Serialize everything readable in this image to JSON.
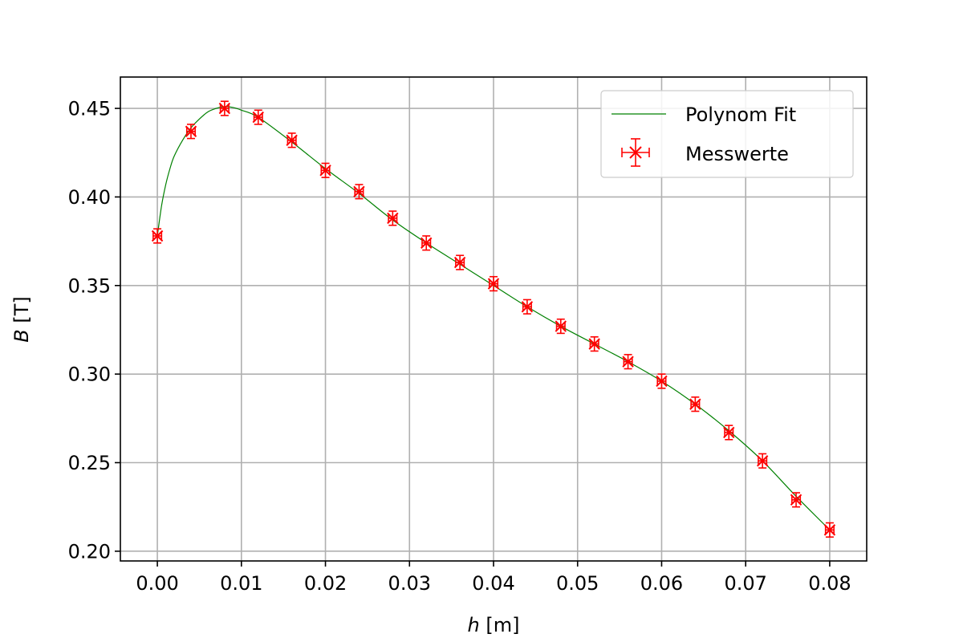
{
  "chart_data": {
    "type": "scatter",
    "title": "",
    "xlabel_var": "h",
    "xlabel_unit": " [m]",
    "ylabel_var": "B",
    "ylabel_unit": " [T]",
    "xlim": [
      -0.0044,
      0.0844
    ],
    "ylim": [
      0.1945,
      0.4677
    ],
    "x_ticks": [
      "0.00",
      "0.01",
      "0.02",
      "0.03",
      "0.04",
      "0.05",
      "0.06",
      "0.07",
      "0.08"
    ],
    "x_tick_values": [
      0.0,
      0.01,
      0.02,
      0.03,
      0.04,
      0.05,
      0.06,
      0.07,
      0.08
    ],
    "y_ticks": [
      "0.20",
      "0.25",
      "0.30",
      "0.35",
      "0.40",
      "0.45"
    ],
    "y_tick_values": [
      0.2,
      0.25,
      0.3,
      0.35,
      0.4,
      0.45
    ],
    "grid": true,
    "legend_position": "top-right",
    "colors": {
      "fit": "#008000",
      "measurements": "#ff0000",
      "grid": "#b0b0b0"
    },
    "series": [
      {
        "name": "Polynom Fit",
        "kind": "line",
        "x": [
          0.0,
          0.0005,
          0.001,
          0.0015,
          0.002,
          0.003,
          0.004,
          0.005,
          0.006,
          0.007,
          0.008,
          0.009,
          0.01,
          0.012,
          0.016,
          0.02,
          0.024,
          0.028,
          0.032,
          0.036,
          0.04,
          0.044,
          0.048,
          0.052,
          0.056,
          0.06,
          0.064,
          0.068,
          0.072,
          0.076,
          0.08
        ],
        "y": [
          0.378,
          0.395,
          0.407,
          0.416,
          0.423,
          0.432,
          0.439,
          0.444,
          0.448,
          0.45,
          0.451,
          0.4505,
          0.449,
          0.445,
          0.431,
          0.416,
          0.402,
          0.387,
          0.374,
          0.362,
          0.35,
          0.338,
          0.327,
          0.317,
          0.307,
          0.296,
          0.283,
          0.268,
          0.251,
          0.231,
          0.212
        ]
      },
      {
        "name": "Messwerte",
        "kind": "errorbar",
        "x": [
          0.0,
          0.004,
          0.008,
          0.012,
          0.016,
          0.02,
          0.024,
          0.028,
          0.032,
          0.036,
          0.04,
          0.044,
          0.048,
          0.052,
          0.056,
          0.06,
          0.064,
          0.068,
          0.072,
          0.076,
          0.08
        ],
        "y": [
          0.378,
          0.437,
          0.45,
          0.445,
          0.432,
          0.415,
          0.403,
          0.388,
          0.374,
          0.363,
          0.351,
          0.338,
          0.327,
          0.317,
          0.307,
          0.296,
          0.283,
          0.267,
          0.251,
          0.229,
          0.212
        ],
        "x_err": 0.0005,
        "y_err": 0.004
      }
    ]
  }
}
